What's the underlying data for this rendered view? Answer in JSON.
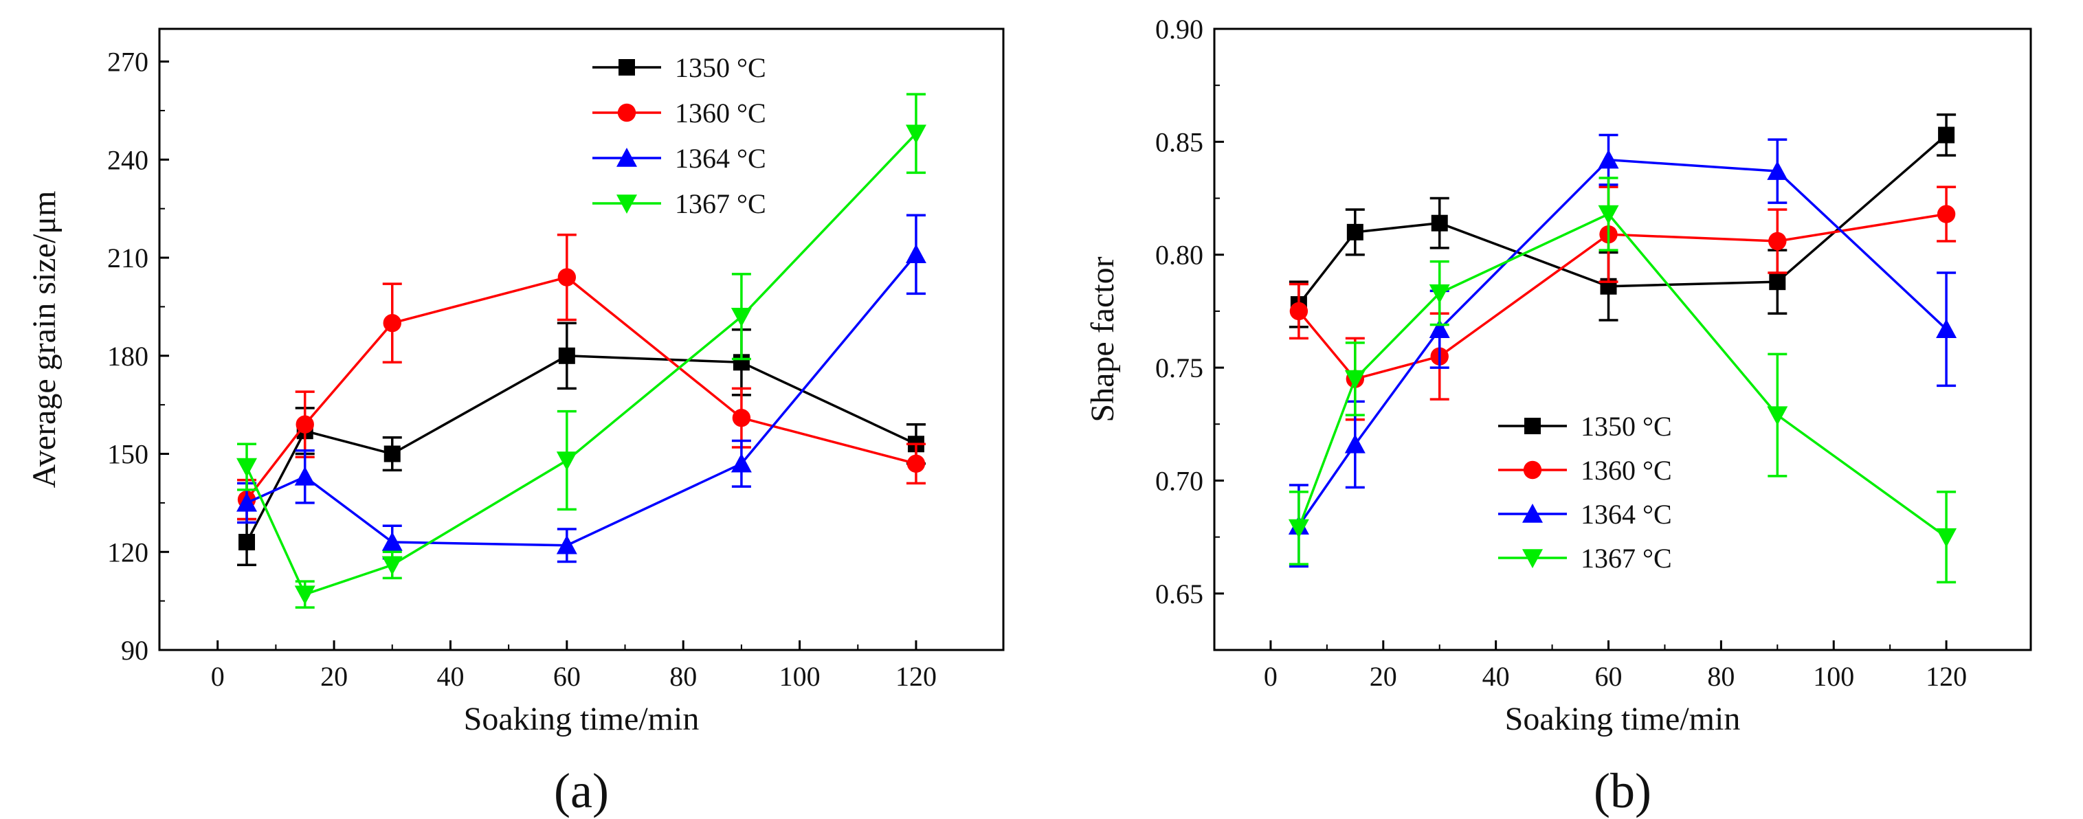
{
  "figure": {
    "panels": [
      "(a)",
      "(b)"
    ]
  },
  "chart_data": [
    {
      "type": "line",
      "panel_label": "(a)",
      "title": "",
      "xlabel": "Soaking time/min",
      "ylabel": "Average grain size/μm",
      "xlim": [
        -10,
        135
      ],
      "ylim": [
        90,
        280
      ],
      "xticks": [
        0,
        20,
        40,
        60,
        80,
        100,
        120
      ],
      "yticks": [
        90,
        120,
        150,
        180,
        210,
        240,
        270
      ],
      "ytick_labels": [
        "90",
        "120",
        "150",
        "180",
        "210",
        "240",
        "270"
      ],
      "legend_position": "top-right",
      "x": [
        5,
        15,
        30,
        60,
        90,
        120
      ],
      "series": [
        {
          "name": "1350 °C",
          "color": "#000000",
          "marker": "square",
          "values": [
            123,
            157,
            150,
            180,
            178,
            153
          ],
          "errors": [
            7,
            7,
            5,
            10,
            10,
            6
          ]
        },
        {
          "name": "1360 °C",
          "color": "#ff0000",
          "marker": "circle",
          "values": [
            136,
            159,
            190,
            204,
            161,
            147
          ],
          "errors": [
            6,
            10,
            12,
            13,
            9,
            6
          ]
        },
        {
          "name": "1364 °C",
          "color": "#0000ff",
          "marker": "triangle-up",
          "values": [
            135,
            143,
            123,
            122,
            147,
            211
          ],
          "errors": [
            6,
            8,
            5,
            5,
            7,
            12
          ]
        },
        {
          "name": "1367 °C",
          "color": "#00ee00",
          "marker": "triangle-down",
          "values": [
            146,
            107,
            116,
            148,
            192,
            248
          ],
          "errors": [
            7,
            4,
            4,
            15,
            13,
            12
          ]
        }
      ]
    },
    {
      "type": "line",
      "panel_label": "(b)",
      "title": "",
      "xlabel": "Soaking time/min",
      "ylabel": "Shape factor",
      "xlim": [
        -10,
        135
      ],
      "ylim": [
        0.625,
        0.9
      ],
      "xticks": [
        0,
        20,
        40,
        60,
        80,
        100,
        120
      ],
      "yticks": [
        0.65,
        0.7,
        0.75,
        0.8,
        0.85,
        0.9
      ],
      "ytick_labels": [
        "0.65",
        "0.70",
        "0.75",
        "0.80",
        "0.85",
        "0.90"
      ],
      "legend_position": "bottom-left",
      "x": [
        5,
        15,
        30,
        60,
        90,
        120
      ],
      "series": [
        {
          "name": "1350 °C",
          "color": "#000000",
          "marker": "square",
          "values": [
            0.778,
            0.81,
            0.814,
            0.786,
            0.788,
            0.853
          ],
          "errors": [
            0.01,
            0.01,
            0.011,
            0.015,
            0.014,
            0.009
          ]
        },
        {
          "name": "1360 °C",
          "color": "#ff0000",
          "marker": "circle",
          "values": [
            0.775,
            0.745,
            0.755,
            0.809,
            0.806,
            0.818
          ],
          "errors": [
            0.012,
            0.018,
            0.019,
            0.021,
            0.014,
            0.012
          ]
        },
        {
          "name": "1364 °C",
          "color": "#0000ff",
          "marker": "triangle-up",
          "values": [
            0.68,
            0.716,
            0.767,
            0.842,
            0.837,
            0.767
          ],
          "errors": [
            0.018,
            0.019,
            0.017,
            0.011,
            0.014,
            0.025
          ]
        },
        {
          "name": "1367 °C",
          "color": "#00ee00",
          "marker": "triangle-down",
          "values": [
            0.679,
            0.745,
            0.783,
            0.818,
            0.729,
            0.675
          ],
          "errors": [
            0.016,
            0.016,
            0.014,
            0.016,
            0.027,
            0.02
          ]
        }
      ]
    }
  ]
}
